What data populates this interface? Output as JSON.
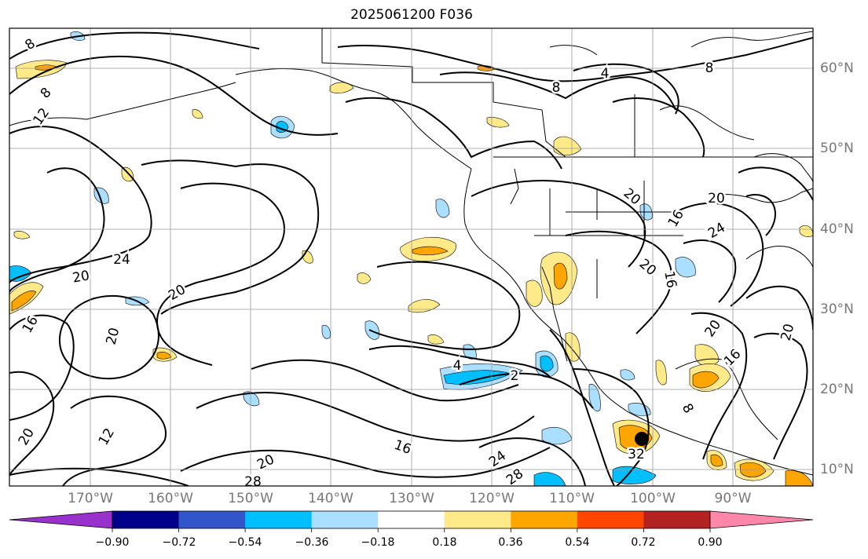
{
  "title": "2025061200 F036",
  "map": {
    "lon_labels": [
      "170°W",
      "160°W",
      "150°W",
      "140°W",
      "130°W",
      "120°W",
      "110°W",
      "100°W",
      "90°W"
    ],
    "lat_labels": [
      "60°N",
      "50°N",
      "40°N",
      "30°N",
      "20°N",
      "10°N"
    ],
    "contour_labels": [
      "8",
      "8",
      "12",
      "8",
      "8",
      "4",
      "20",
      "20",
      "16",
      "24",
      "24",
      "20",
      "20",
      "16",
      "16",
      "20",
      "20",
      "12",
      "20",
      "28",
      "16",
      "24",
      "28",
      "4",
      "2",
      "32",
      "20",
      "16",
      "24",
      "8",
      "20",
      "20"
    ],
    "marker": "filled-circle"
  },
  "colorbar": {
    "tick_labels": [
      "−0.90",
      "−0.72",
      "−0.54",
      "−0.36",
      "−0.18",
      "0.18",
      "0.36",
      "0.54",
      "0.72",
      "0.90"
    ],
    "colors": {
      "under": "#9932cc",
      "bins": [
        "#00008b",
        "#3355cc",
        "#00bfff",
        "#aadfff",
        "#ffffff",
        "#ffea8a",
        "#ffa500",
        "#ff4500",
        "#b22222"
      ],
      "over": "#ff88aa"
    }
  }
}
